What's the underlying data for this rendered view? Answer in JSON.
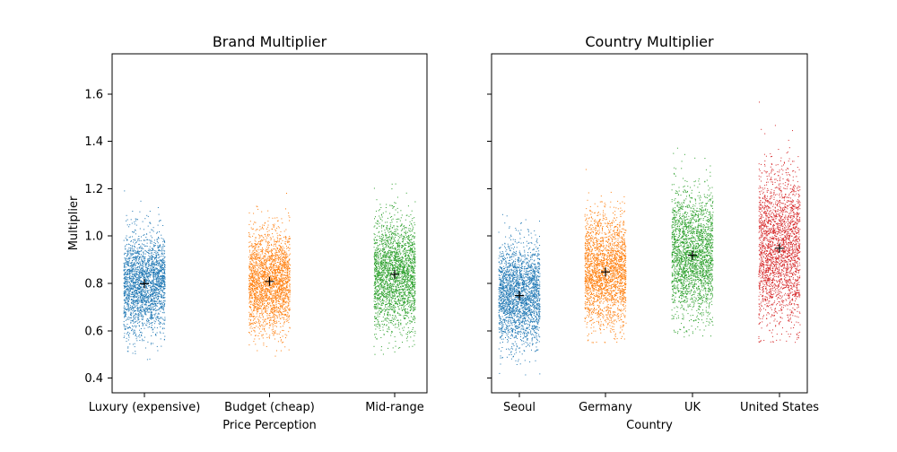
{
  "chart_data": [
    {
      "type": "scatter",
      "title": "Brand Multiplier",
      "xlabel": "Price Perception",
      "ylabel": "Multiplier",
      "categories": [
        "Luxury (expensive)",
        "Budget (cheap)",
        "Mid-range"
      ],
      "ylim": [
        0.34,
        1.77
      ],
      "yticks": [
        0.4,
        0.6,
        0.8,
        1.0,
        1.2,
        1.4,
        1.6
      ],
      "ytick_labels": [
        "0.4",
        "0.6",
        "0.8",
        "1.0",
        "1.2",
        "1.4",
        "1.6"
      ],
      "colors": [
        "#1f77b4",
        "#ff7f0e",
        "#2ca02c"
      ],
      "series": [
        {
          "mean": 0.8,
          "sd": 0.105,
          "min": 0.48,
          "max": 1.29
        },
        {
          "mean": 0.81,
          "sd": 0.105,
          "min": 0.48,
          "max": 1.31
        },
        {
          "mean": 0.84,
          "sd": 0.115,
          "min": 0.5,
          "max": 1.35
        }
      ],
      "mean_marker": "+",
      "grid": false
    },
    {
      "type": "scatter",
      "title": "Country Multiplier",
      "xlabel": "Country",
      "ylabel": "",
      "categories": [
        "Seoul",
        "Germany",
        "UK",
        "United States"
      ],
      "ylim": [
        0.34,
        1.77
      ],
      "yticks": [
        0.4,
        0.6,
        0.8,
        1.0,
        1.2,
        1.4,
        1.6
      ],
      "colors": [
        "#1f77b4",
        "#ff7f0e",
        "#2ca02c",
        "#d62728"
      ],
      "series": [
        {
          "mean": 0.75,
          "sd": 0.105,
          "min": 0.41,
          "max": 1.24
        },
        {
          "mean": 0.85,
          "sd": 0.115,
          "min": 0.54,
          "max": 1.42
        },
        {
          "mean": 0.92,
          "sd": 0.13,
          "min": 0.57,
          "max": 1.56
        },
        {
          "mean": 0.95,
          "sd": 0.16,
          "min": 0.55,
          "max": 1.71
        }
      ],
      "mean_marker": "+",
      "grid": false
    }
  ]
}
